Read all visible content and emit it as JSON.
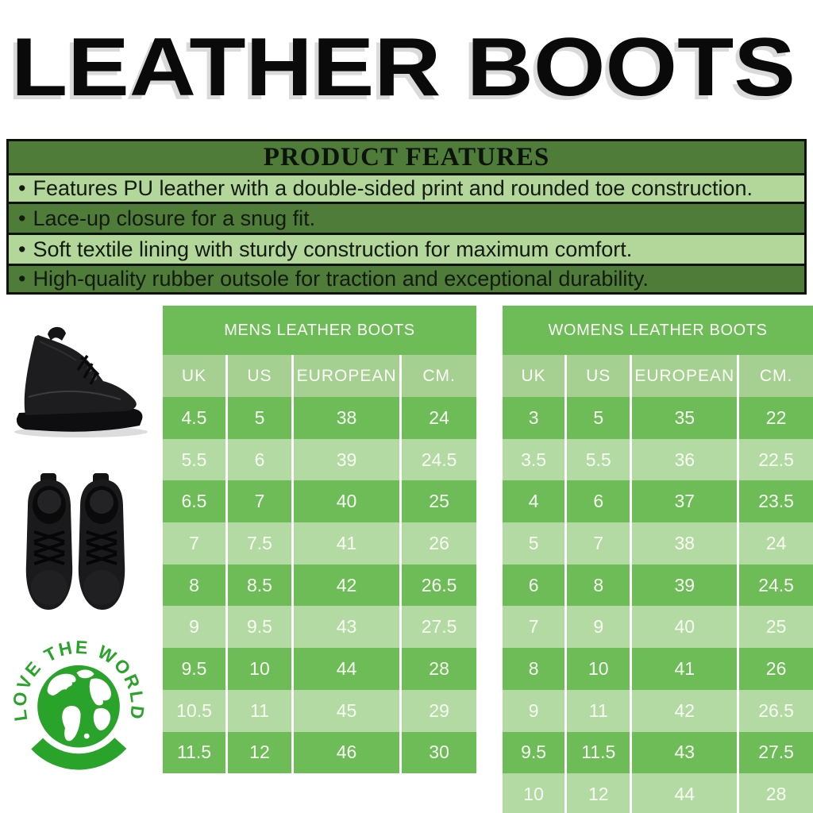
{
  "page_title": "LEATHER BOOTS",
  "features": {
    "title": "PRODUCT FEATURES",
    "bullet": "•",
    "items": [
      "Features PU leather with a double-sided print and rounded toe construction.",
      "Lace-up closure for a snug fit.",
      "Soft textile lining with sturdy construction for maximum comfort.",
      "High-quality rubber outsole for traction and exceptional durability."
    ]
  },
  "tables": [
    {
      "title": "MENS LEATHER BOOTS",
      "columns": [
        "UK",
        "US",
        "EUROPEAN",
        "CM."
      ],
      "rows": [
        [
          "4.5",
          "5",
          "38",
          "24"
        ],
        [
          "5.5",
          "6",
          "39",
          "24.5"
        ],
        [
          "6.5",
          "7",
          "40",
          "25"
        ],
        [
          "7",
          "7.5",
          "41",
          "26"
        ],
        [
          "8",
          "8.5",
          "42",
          "26.5"
        ],
        [
          "9",
          "9.5",
          "43",
          "27.5"
        ],
        [
          "9.5",
          "10",
          "44",
          "28"
        ],
        [
          "10.5",
          "11",
          "45",
          "29"
        ],
        [
          "11.5",
          "12",
          "46",
          "30"
        ]
      ]
    },
    {
      "title": "WOMENS LEATHER BOOTS",
      "columns": [
        "UK",
        "US",
        "EUROPEAN",
        "CM."
      ],
      "rows": [
        [
          "3",
          "5",
          "35",
          "22"
        ],
        [
          "3.5",
          "5.5",
          "36",
          "22.5"
        ],
        [
          "4",
          "6",
          "37",
          "23.5"
        ],
        [
          "5",
          "7",
          "38",
          "24"
        ],
        [
          "6",
          "8",
          "39",
          "24.5"
        ],
        [
          "7",
          "9",
          "40",
          "25"
        ],
        [
          "8",
          "10",
          "41",
          "26"
        ],
        [
          "9",
          "11",
          "42",
          "26.5"
        ],
        [
          "9.5",
          "11.5",
          "43",
          "27.5"
        ],
        [
          "10",
          "12",
          "44",
          "28"
        ]
      ]
    }
  ],
  "logo": {
    "text": "LOVE THE WORLD"
  },
  "colors": {
    "feature_dark_green": "#4f7c39",
    "feature_light_green": "#b3d79a",
    "table_green": "#6ebc58",
    "table_row_light_green": "#b3daa2",
    "table_column_band_green": "#a5d092",
    "logo_green": "#2aa32a",
    "title_black": "#0a0a0a"
  }
}
